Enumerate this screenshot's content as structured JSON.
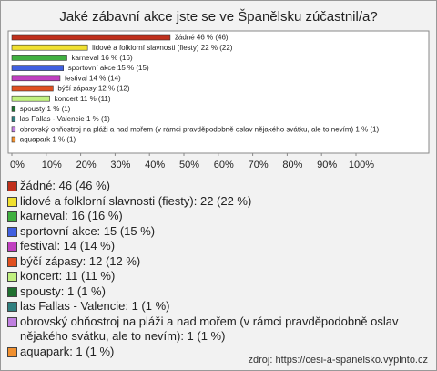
{
  "chart_data": {
    "type": "bar",
    "orientation": "horizontal",
    "title": "Jaké zábavní akce jste se ve Španělsku zúčastnil/a?",
    "categories": [
      "žádné",
      "lidové a folklorní slavnosti (fiesty)",
      "karneval",
      "sportovní akce",
      "festival",
      "býčí zápasy",
      "koncert",
      "spousty",
      "las Fallas - Valencie",
      "obrovský ohňostroj na pláži a nad mořem (v rámci pravděpodobně oslav nějakého svátku, ale to nevím)",
      "aquapark"
    ],
    "values": [
      46,
      22,
      16,
      15,
      14,
      12,
      11,
      1,
      1,
      1,
      1
    ],
    "value_labels": [
      "žádné 46 % (46)",
      "lidové a folklorní slavnosti (fiesty) 22 % (22)",
      "karneval 16 % (16)",
      "sportovní akce 15 % (15)",
      "festival 14 % (14)",
      "býčí zápasy 12 % (12)",
      "koncert 11 % (11)",
      "spousty 1 % (1)",
      "las Fallas - Valencie 1 % (1)",
      "obrovský ohňostroj na pláži a nad mořem (v rámci pravděpodobně oslav nějakého svátku, ale to nevím) 1 % (1)",
      "aquapark 1 % (1)"
    ],
    "legend_labels": [
      "žádné: 46 (46 %)",
      "lidové a folklorní slavnosti (fiesty): 22 (22 %)",
      "karneval: 16 (16 %)",
      "sportovní akce: 15 (15 %)",
      "festival: 14 (14 %)",
      "býčí zápasy: 12 (12 %)",
      "koncert: 11 (11 %)",
      "spousty: 1 (1 %)",
      "las Fallas - Valencie: 1 (1 %)",
      "obrovský ohňostroj na pláži a nad mořem (v rámci pravděpodobně oslav nějakého svátku, ale to nevím): 1 (1 %)",
      "aquapark: 1 (1 %)"
    ],
    "colors": [
      "#c0301c",
      "#f0e030",
      "#40b040",
      "#4060e0",
      "#c040c0",
      "#e05020",
      "#c0f080",
      "#207030",
      "#308080",
      "#c080e0",
      "#f09030"
    ],
    "xlim": [
      0,
      100
    ],
    "xticks": [
      {
        "value": 0,
        "label": "0%"
      },
      {
        "value": 10,
        "label": "10%"
      },
      {
        "value": 20,
        "label": "20%"
      },
      {
        "value": 30,
        "label": "30%"
      },
      {
        "value": 40,
        "label": "40%"
      },
      {
        "value": 50,
        "label": "50%"
      },
      {
        "value": 60,
        "label": "60%"
      },
      {
        "value": 70,
        "label": "70%"
      },
      {
        "value": 80,
        "label": "80%"
      },
      {
        "value": 90,
        "label": "90%"
      },
      {
        "value": 100,
        "label": "100%"
      }
    ],
    "source": "zdroj: https://cesi-a-spanelsko.vyplnto.cz"
  }
}
